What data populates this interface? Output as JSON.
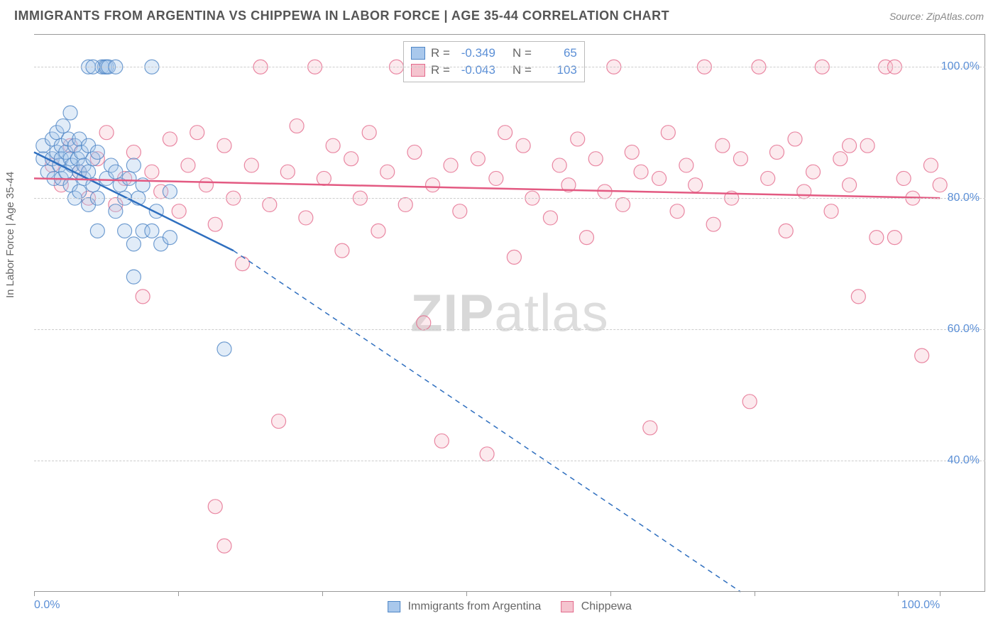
{
  "title": "IMMIGRANTS FROM ARGENTINA VS CHIPPEWA IN LABOR FORCE | AGE 35-44 CORRELATION CHART",
  "source": "Source: ZipAtlas.com",
  "y_axis_label": "In Labor Force | Age 35-44",
  "watermark_bold": "ZIP",
  "watermark_rest": "atlas",
  "chart": {
    "type": "scatter",
    "x_min": 0,
    "x_max": 105,
    "y_min": 20,
    "y_max": 105,
    "y_ticks": [
      40,
      60,
      80,
      100
    ],
    "y_tick_labels": [
      "40.0%",
      "60.0%",
      "80.0%",
      "100.0%"
    ],
    "x_ticks": [
      0,
      15.9,
      31.8,
      47.7,
      63.6,
      79.5,
      95.4,
      100
    ],
    "x_tick_labels_shown": {
      "0": "0.0%",
      "100": "100.0%"
    },
    "background_color": "#ffffff",
    "grid_color": "#cccccc",
    "axis_color": "#999999",
    "tick_label_color": "#5b8fd6",
    "marker_radius": 10,
    "marker_opacity": 0.35,
    "line_width_solid": 2.5,
    "line_width_dash": 1.5
  },
  "series": [
    {
      "name": "Immigrants from Argentina",
      "fill": "#a9c8ec",
      "stroke": "#4f86c6",
      "line_color": "#2f6fbf",
      "r": "-0.349",
      "n": "65",
      "trend_solid": {
        "x1": 0,
        "y1": 87,
        "x2": 22,
        "y2": 72
      },
      "trend_dash": {
        "x1": 22,
        "y1": 72,
        "x2": 78,
        "y2": 20
      },
      "points": [
        [
          1,
          86
        ],
        [
          1,
          88
        ],
        [
          1.5,
          84
        ],
        [
          2,
          89
        ],
        [
          2,
          86
        ],
        [
          2.2,
          83
        ],
        [
          2.5,
          87
        ],
        [
          2.5,
          90
        ],
        [
          2.8,
          85
        ],
        [
          3,
          88
        ],
        [
          3,
          86
        ],
        [
          3,
          83
        ],
        [
          3.2,
          91
        ],
        [
          3.5,
          87
        ],
        [
          3.5,
          84
        ],
        [
          3.8,
          89
        ],
        [
          4,
          86
        ],
        [
          4,
          82
        ],
        [
          4,
          93
        ],
        [
          4.2,
          85
        ],
        [
          4.5,
          88
        ],
        [
          4.5,
          80
        ],
        [
          4.8,
          86
        ],
        [
          5,
          84
        ],
        [
          5,
          89
        ],
        [
          5,
          81
        ],
        [
          5.2,
          87
        ],
        [
          5.5,
          83
        ],
        [
          5.5,
          85
        ],
        [
          6,
          88
        ],
        [
          6,
          79
        ],
        [
          6,
          84
        ],
        [
          6.5,
          86
        ],
        [
          6.5,
          82
        ],
        [
          7,
          87
        ],
        [
          7,
          80
        ],
        [
          7,
          75
        ],
        [
          7.5,
          100
        ],
        [
          7.8,
          100
        ],
        [
          8,
          100
        ],
        [
          8,
          83
        ],
        [
          8.5,
          85
        ],
        [
          8.2,
          100
        ],
        [
          9,
          84
        ],
        [
          9,
          78
        ],
        [
          9,
          100
        ],
        [
          9.5,
          82
        ],
        [
          10,
          80
        ],
        [
          10,
          75
        ],
        [
          10.5,
          83
        ],
        [
          11,
          68
        ],
        [
          11,
          73
        ],
        [
          11,
          85
        ],
        [
          11.5,
          80
        ],
        [
          12,
          75
        ],
        [
          12,
          82
        ],
        [
          13,
          100
        ],
        [
          13,
          75
        ],
        [
          13.5,
          78
        ],
        [
          14,
          73
        ],
        [
          15,
          74
        ],
        [
          15,
          81
        ],
        [
          21,
          57
        ],
        [
          6,
          100
        ],
        [
          6.5,
          100
        ]
      ]
    },
    {
      "name": "Chippewa",
      "fill": "#f5c4cf",
      "stroke": "#e36a8c",
      "line_color": "#e35a82",
      "r": "-0.043",
      "n": "103",
      "trend_solid": {
        "x1": 0,
        "y1": 83,
        "x2": 100,
        "y2": 80
      },
      "trend_dash": null,
      "points": [
        [
          2,
          85
        ],
        [
          3,
          82
        ],
        [
          4,
          88
        ],
        [
          5,
          84
        ],
        [
          6,
          80
        ],
        [
          7,
          86
        ],
        [
          8,
          90
        ],
        [
          9,
          79
        ],
        [
          10,
          83
        ],
        [
          11,
          87
        ],
        [
          12,
          65
        ],
        [
          13,
          84
        ],
        [
          14,
          81
        ],
        [
          15,
          89
        ],
        [
          16,
          78
        ],
        [
          17,
          85
        ],
        [
          18,
          90
        ],
        [
          19,
          82
        ],
        [
          20,
          76
        ],
        [
          20,
          33
        ],
        [
          21,
          88
        ],
        [
          21,
          27
        ],
        [
          22,
          80
        ],
        [
          23,
          70
        ],
        [
          24,
          85
        ],
        [
          25,
          100
        ],
        [
          26,
          79
        ],
        [
          27,
          46
        ],
        [
          28,
          84
        ],
        [
          29,
          91
        ],
        [
          30,
          77
        ],
        [
          31,
          100
        ],
        [
          32,
          83
        ],
        [
          33,
          88
        ],
        [
          34,
          72
        ],
        [
          35,
          86
        ],
        [
          36,
          80
        ],
        [
          37,
          90
        ],
        [
          38,
          75
        ],
        [
          39,
          84
        ],
        [
          40,
          100
        ],
        [
          41,
          79
        ],
        [
          42,
          87
        ],
        [
          43,
          61
        ],
        [
          44,
          82
        ],
        [
          45,
          43
        ],
        [
          46,
          85
        ],
        [
          47,
          78
        ],
        [
          48,
          100
        ],
        [
          49,
          86
        ],
        [
          50,
          41
        ],
        [
          51,
          83
        ],
        [
          52,
          90
        ],
        [
          53,
          71
        ],
        [
          54,
          88
        ],
        [
          55,
          80
        ],
        [
          56,
          100
        ],
        [
          57,
          77
        ],
        [
          58,
          85
        ],
        [
          59,
          82
        ],
        [
          60,
          89
        ],
        [
          61,
          74
        ],
        [
          62,
          86
        ],
        [
          63,
          81
        ],
        [
          64,
          100
        ],
        [
          65,
          79
        ],
        [
          66,
          87
        ],
        [
          67,
          84
        ],
        [
          68,
          45
        ],
        [
          69,
          83
        ],
        [
          70,
          90
        ],
        [
          71,
          78
        ],
        [
          72,
          85
        ],
        [
          73,
          82
        ],
        [
          74,
          100
        ],
        [
          75,
          76
        ],
        [
          76,
          88
        ],
        [
          77,
          80
        ],
        [
          78,
          86
        ],
        [
          79,
          49
        ],
        [
          80,
          100
        ],
        [
          81,
          83
        ],
        [
          82,
          87
        ],
        [
          83,
          75
        ],
        [
          84,
          89
        ],
        [
          85,
          81
        ],
        [
          86,
          84
        ],
        [
          87,
          100
        ],
        [
          88,
          78
        ],
        [
          89,
          86
        ],
        [
          90,
          82
        ],
        [
          91,
          65
        ],
        [
          92,
          88
        ],
        [
          93,
          74
        ],
        [
          94,
          100
        ],
        [
          95,
          100
        ],
        [
          96,
          83
        ],
        [
          97,
          80
        ],
        [
          98,
          56
        ],
        [
          99,
          85
        ],
        [
          100,
          82
        ],
        [
          95,
          74
        ],
        [
          90,
          88
        ]
      ]
    }
  ],
  "legend": {
    "items": [
      {
        "label": "Immigrants from Argentina",
        "fill": "#a9c8ec",
        "stroke": "#4f86c6"
      },
      {
        "label": "Chippewa",
        "fill": "#f5c4cf",
        "stroke": "#e36a8c"
      }
    ]
  },
  "r_box": {
    "r_label": "R =",
    "n_label": "N ="
  }
}
